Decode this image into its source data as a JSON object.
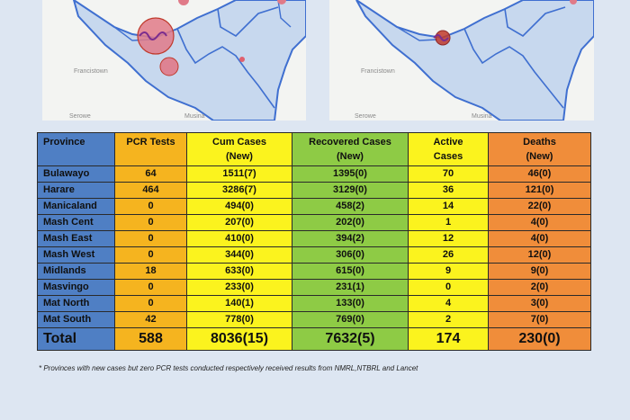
{
  "maps": {
    "left": {
      "labels": [
        "Francistown",
        "Serowe",
        "Musina"
      ]
    },
    "right": {
      "labels": [
        "Francistown",
        "Serowe",
        "Musina"
      ]
    }
  },
  "table": {
    "headers": {
      "province": "Province",
      "pcr": "PCR Tests",
      "cum_1": "Cum Cases",
      "cum_2": "(New)",
      "rec_1": "Recovered Cases",
      "rec_2": "(New)",
      "act_1": "Active",
      "act_2": "Cases",
      "dea_1": "Deaths",
      "dea_2": "(New)"
    },
    "rows": [
      {
        "province": "Bulawayo",
        "pcr": "64",
        "cum": "1511(7)",
        "rec": "1395(0)",
        "act": "70",
        "dea": "46(0)"
      },
      {
        "province": "Harare",
        "pcr": "464",
        "cum": "3286(7)",
        "rec": "3129(0)",
        "act": "36",
        "dea": "121(0)"
      },
      {
        "province": "Manicaland",
        "pcr": "0",
        "cum": "494(0)",
        "rec": "458(2)",
        "act": "14",
        "dea": "22(0)"
      },
      {
        "province": "Mash Cent",
        "pcr": "0",
        "cum": "207(0)",
        "rec": "202(0)",
        "act": "1",
        "dea": "4(0)"
      },
      {
        "province": "Mash East",
        "pcr": "0",
        "cum": "410(0)",
        "rec": "394(2)",
        "act": "12",
        "dea": "4(0)"
      },
      {
        "province": "Mash West",
        "pcr": "0",
        "cum": "344(0)",
        "rec": "306(0)",
        "act": "26",
        "dea": "12(0)"
      },
      {
        "province": "Midlands",
        "pcr": "18",
        "cum": "633(0)",
        "rec": "615(0)",
        "act": "9",
        "dea": "9(0)"
      },
      {
        "province": "Masvingo",
        "pcr": "0",
        "cum": "233(0)",
        "rec": "231(1)",
        "act": "0",
        "dea": "2(0)"
      },
      {
        "province": "Mat North",
        "pcr": "0",
        "cum": "140(1)",
        "rec": "133(0)",
        "act": "4",
        "dea": "3(0)"
      },
      {
        "province": "Mat South",
        "pcr": "42",
        "cum": "778(0)",
        "rec": "769(0)",
        "act": "2",
        "dea": "7(0)"
      }
    ],
    "total": {
      "province": "Total",
      "pcr": "588",
      "cum": "8036(15)",
      "rec": "7632(5)",
      "act": "174",
      "dea": "230(0)"
    }
  },
  "footnote": "* Provinces  with new cases but zero  PCR tests conducted respectively received results from NMRL,NTBRL and Lancet",
  "colors": {
    "province": "#4f7fc4",
    "pcr": "#f5b41f",
    "cum": "#fbf31e",
    "recovered": "#8ecb45",
    "active": "#fbf31e",
    "deaths": "#f08d3a"
  }
}
